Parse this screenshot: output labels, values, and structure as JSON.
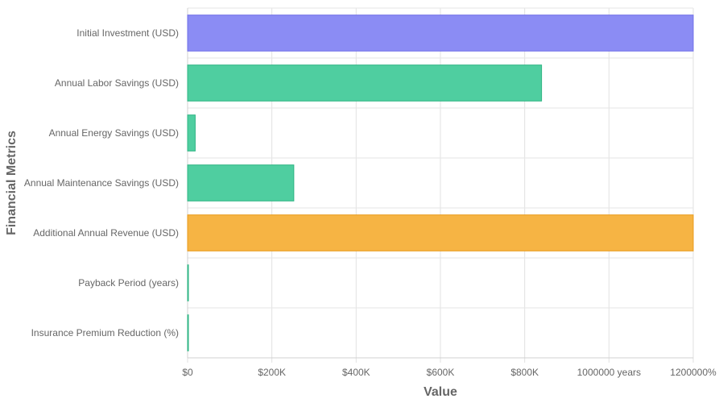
{
  "chart_data": {
    "type": "bar",
    "orientation": "horizontal",
    "title": "",
    "xlabel": "Value",
    "ylabel": "Financial Metrics",
    "categories": [
      "Initial Investment (USD)",
      "Annual Labor Savings (USD)",
      "Annual Energy Savings (USD)",
      "Annual Maintenance Savings (USD)",
      "Additional Annual Revenue (USD)",
      "Payback Period (years)",
      "Insurance Premium Reduction (%)"
    ],
    "values": [
      1200000,
      840000,
      18000,
      252000,
      1200000,
      2.5,
      5
    ],
    "bar_colors": [
      "#8b8cf4",
      "#4fcea0",
      "#4fcea0",
      "#4fcea0",
      "#f6b444",
      "#4fcea0",
      "#4fcea0"
    ],
    "bar_border_colors": [
      "#7070e8",
      "#2fb584",
      "#2fb584",
      "#2fb584",
      "#e89a1a",
      "#2fb584",
      "#2fb584"
    ],
    "xlim": [
      0,
      1200000
    ],
    "x_ticks": [
      {
        "value": 0,
        "label": "$0"
      },
      {
        "value": 200000,
        "label": "$200K"
      },
      {
        "value": 400000,
        "label": "$400K"
      },
      {
        "value": 600000,
        "label": "$600K"
      },
      {
        "value": 800000,
        "label": "$800K"
      },
      {
        "value": 1000000,
        "label": "1000000 years"
      },
      {
        "value": 1200000,
        "label": "1200000%"
      }
    ],
    "grid": true,
    "legend": "none"
  }
}
